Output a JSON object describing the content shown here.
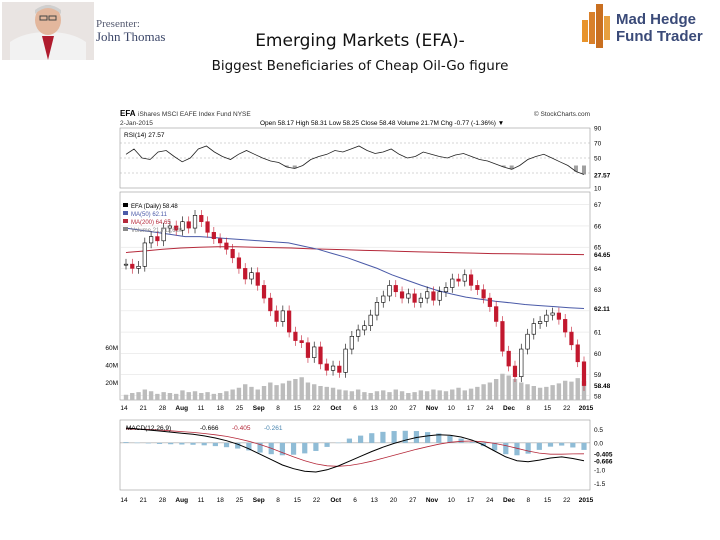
{
  "header": {
    "presenter_label": "Presenter:",
    "presenter_name": "John Thomas",
    "logo_line1": "Mad Hedge",
    "logo_line2": "Fund Trader"
  },
  "slide": {
    "title": "Emerging Markets (EFA)-",
    "subtitle": "Biggest Beneficiaries of Cheap Oil-Go figure"
  },
  "chart_header": {
    "symbol": "EFA",
    "name": "iShares MSCI EAFE Index Fund NYSE",
    "source": "© StockCharts.com",
    "date": "2-Jan-2015",
    "ohlc_line": "Open 58.17  High 58.31  Low 58.25  Close 58.48  Volume 21.7M  Chg -0.77 (-1.36%) ▼"
  },
  "chart_data": {
    "type": "line",
    "x_ticks": [
      "14",
      "21",
      "28",
      "Aug",
      "11",
      "18",
      "25",
      "Sep",
      "8",
      "15",
      "22",
      "Oct",
      "6",
      "13",
      "20",
      "27",
      "Nov",
      "10",
      "17",
      "24",
      "Dec",
      "8",
      "15",
      "22",
      "2015"
    ],
    "rsi": {
      "label": "RSI(14) 27.57",
      "ticks": [
        "90",
        "70",
        "50",
        "27.57",
        "10"
      ],
      "ylim": [
        10,
        90
      ],
      "values": [
        55,
        62,
        50,
        48,
        58,
        60,
        52,
        45,
        50,
        62,
        66,
        58,
        52,
        48,
        55,
        60,
        55,
        50,
        46,
        44,
        38,
        36,
        40,
        48,
        52,
        55,
        60,
        58,
        62,
        66,
        60,
        56,
        58,
        62,
        55,
        50,
        52,
        58,
        55,
        52,
        50,
        54,
        56,
        52,
        48,
        46,
        42,
        38,
        35,
        40,
        48,
        52,
        55,
        50,
        45,
        40,
        32,
        28
      ]
    },
    "price": {
      "legend": [
        "EFA (Daily) 58.48",
        "MA(50) 62.11",
        "MA(200) 64.65",
        "Volume 21,711,620"
      ],
      "ticks": [
        "67",
        "66",
        "65",
        "64.65",
        "64",
        "63",
        "62.11",
        "61",
        "60",
        "59",
        "58.48",
        "58"
      ],
      "ylim": [
        57.8,
        67.6
      ],
      "close": [
        64.2,
        64.0,
        64.1,
        65.2,
        65.5,
        65.3,
        65.9,
        66.0,
        65.8,
        66.2,
        65.9,
        66.5,
        66.2,
        65.7,
        65.4,
        65.2,
        64.9,
        64.5,
        64.0,
        63.5,
        63.8,
        63.2,
        62.6,
        62.0,
        61.5,
        62.0,
        61.0,
        60.6,
        60.5,
        59.8,
        60.3,
        59.5,
        59.2,
        59.4,
        59.1,
        60.2,
        60.8,
        61.1,
        61.3,
        61.8,
        62.4,
        62.7,
        63.2,
        62.9,
        62.6,
        62.8,
        62.4,
        62.6,
        62.9,
        62.5,
        62.9,
        63.1,
        63.5,
        63.4,
        63.7,
        63.2,
        63.0,
        62.6,
        62.2,
        61.5,
        60.1,
        59.4,
        58.9,
        60.2,
        60.9,
        61.4,
        61.5,
        61.8,
        61.9,
        61.6,
        61.0,
        60.4,
        59.6,
        58.48
      ],
      "ma50": [
        65.9,
        65.8,
        65.7,
        65.6,
        65.5,
        65.5,
        65.45,
        65.4,
        65.35,
        65.3,
        65.25,
        65.2,
        65.05,
        64.9,
        64.7,
        64.5,
        64.25,
        64.0,
        63.7,
        63.45,
        63.2,
        62.98,
        62.8,
        62.65,
        62.55,
        62.45,
        62.38,
        62.3,
        62.25,
        62.2,
        62.15,
        62.11
      ],
      "ma200": [
        64.75,
        64.82,
        64.9,
        64.96,
        65.0,
        65.02,
        65.02,
        65.0,
        64.98,
        64.96,
        64.93,
        64.9,
        64.88,
        64.85,
        64.83,
        64.8,
        64.78,
        64.76,
        64.74,
        64.72,
        64.7,
        64.69,
        64.68,
        64.67,
        64.66,
        64.65
      ],
      "volume": [
        6,
        8,
        9,
        12,
        10,
        7,
        9,
        8,
        7,
        11,
        9,
        10,
        8,
        9,
        7,
        8,
        10,
        12,
        14,
        18,
        15,
        12,
        16,
        20,
        17,
        19,
        22,
        24,
        26,
        20,
        18,
        16,
        15,
        14,
        12,
        11,
        10,
        12,
        9,
        8,
        10,
        11,
        9,
        12,
        10,
        8,
        9,
        11,
        10,
        12,
        11,
        10,
        12,
        14,
        11,
        13,
        15,
        18,
        20,
        24,
        30,
        28,
        24,
        20,
        18,
        16,
        14,
        15,
        17,
        19,
        22,
        21,
        25,
        21.7
      ]
    },
    "volume_ticks": [
      "60M",
      "40M",
      "20M"
    ],
    "macd": {
      "label_name": "MACD(12,26,9)",
      "label_macd": "-0.666",
      "label_signal": "-0.405",
      "label_hist": "-0.261",
      "ticks": [
        "0.5",
        "0.0",
        "-0.405",
        "-0.666",
        "-1.0",
        "-1.5"
      ],
      "ylim": [
        -1.75,
        0.85
      ],
      "macd": [
        0.55,
        0.52,
        0.48,
        0.44,
        0.4,
        0.36,
        0.32,
        0.26,
        0.18,
        0.08,
        -0.05,
        -0.22,
        -0.42,
        -0.62,
        -0.82,
        -0.96,
        -1.05,
        -1.08,
        -1.0,
        -0.86,
        -0.68,
        -0.5,
        -0.32,
        -0.16,
        -0.02,
        0.1,
        0.2,
        0.26,
        0.3,
        0.28,
        0.22,
        0.1,
        -0.08,
        -0.3,
        -0.52,
        -0.66,
        -0.7,
        -0.64,
        -0.56,
        -0.52,
        -0.58,
        -0.666
      ],
      "signal": [
        0.52,
        0.51,
        0.5,
        0.48,
        0.45,
        0.42,
        0.39,
        0.35,
        0.3,
        0.24,
        0.16,
        0.06,
        -0.06,
        -0.2,
        -0.36,
        -0.52,
        -0.66,
        -0.78,
        -0.85,
        -0.87,
        -0.84,
        -0.77,
        -0.68,
        -0.57,
        -0.46,
        -0.35,
        -0.24,
        -0.14,
        -0.05,
        0.02,
        0.06,
        0.07,
        0.04,
        -0.02,
        -0.1,
        -0.2,
        -0.3,
        -0.38,
        -0.42,
        -0.42,
        -0.41,
        -0.405
      ]
    },
    "colors": {
      "ma50": "#4a5aa8",
      "ma200": "#b5293a",
      "up_candle": "#000000",
      "down_candle": "#c2182e",
      "volume": "#bcbcbc",
      "macd_hist": "#8fbcd6",
      "rsi_fill": "#777777"
    }
  }
}
